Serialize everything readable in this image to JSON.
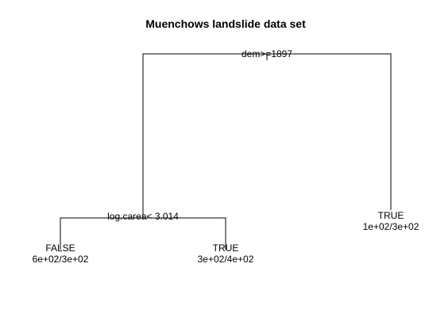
{
  "title": "Muenchows landslide data set",
  "tree": {
    "root_split": "dem>=1897",
    "left_split": "log.carea< 3.014",
    "leaves": [
      {
        "class": "FALSE",
        "counts": "6e+02/3e+02"
      },
      {
        "class": "TRUE",
        "counts": "3e+02/4e+02"
      },
      {
        "class": "TRUE",
        "counts": "1e+02/3e+02"
      }
    ]
  }
}
